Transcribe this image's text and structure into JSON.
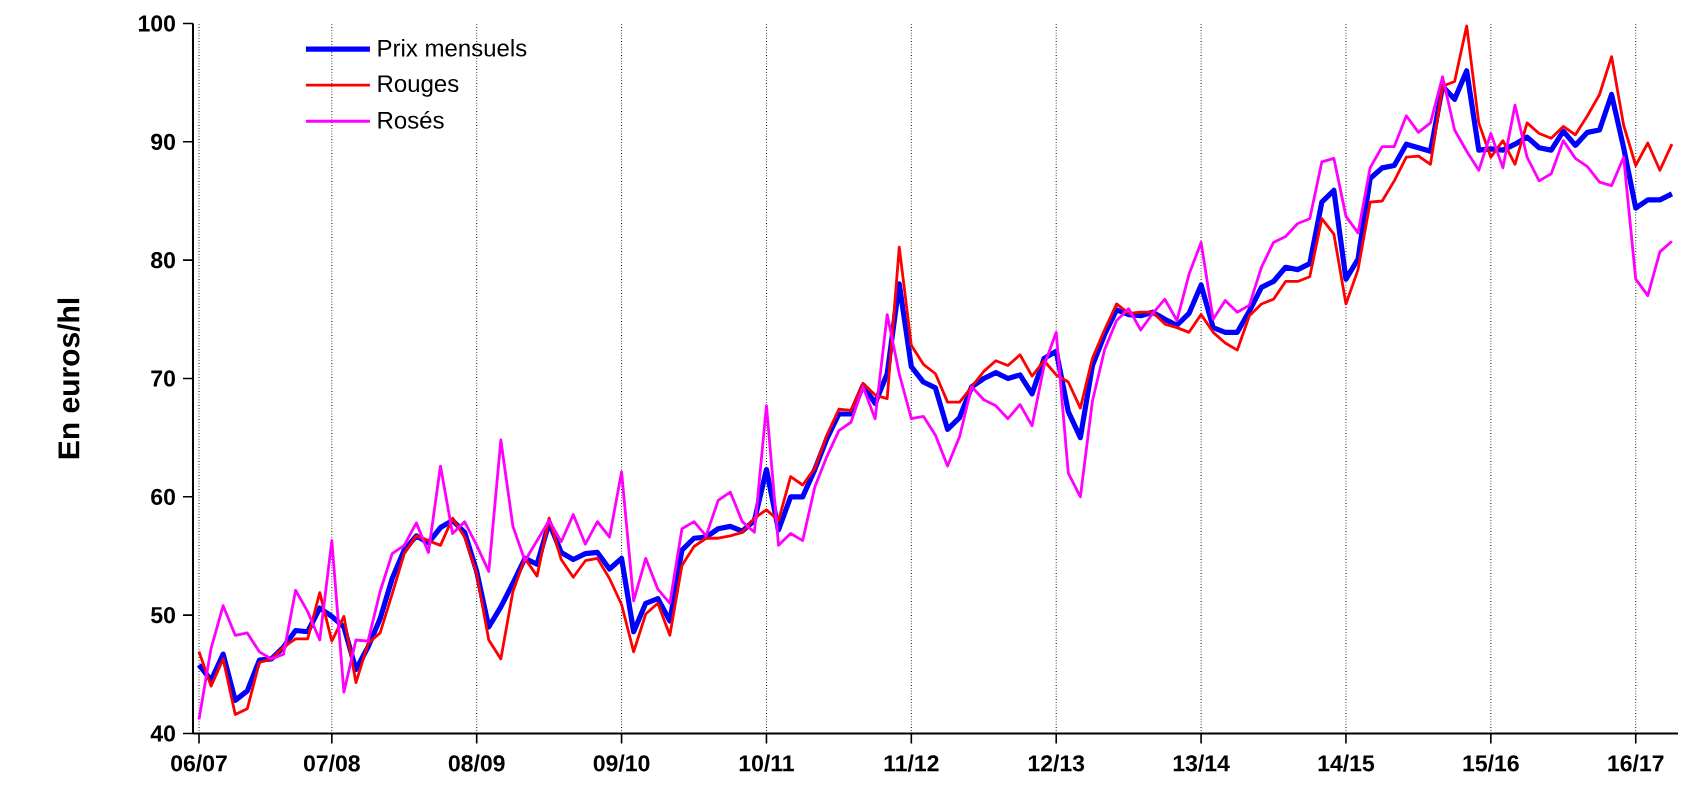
{
  "chart_data": {
    "type": "line",
    "ylabel": "En euros/hl",
    "grid": "x",
    "legend": "top left",
    "line_style": "solid",
    "marker": "none",
    "ylim": [
      40,
      100
    ],
    "yticks": [
      40,
      50,
      60,
      70,
      80,
      90,
      100
    ],
    "categories": [
      "06/07",
      null,
      null,
      null,
      null,
      null,
      null,
      null,
      null,
      null,
      null,
      "07/08",
      null,
      null,
      null,
      null,
      null,
      null,
      null,
      null,
      null,
      null,
      null,
      "08/09",
      null,
      null,
      null,
      null,
      null,
      null,
      null,
      null,
      null,
      null,
      null,
      "09/10",
      null,
      null,
      null,
      null,
      null,
      null,
      null,
      null,
      null,
      null,
      null,
      "10/11",
      null,
      null,
      null,
      null,
      null,
      null,
      null,
      null,
      null,
      null,
      null,
      "11/12",
      null,
      null,
      null,
      null,
      null,
      null,
      null,
      null,
      null,
      null,
      null,
      "12/13",
      null,
      null,
      null,
      null,
      null,
      null,
      null,
      null,
      null,
      null,
      null,
      "13/14",
      null,
      null,
      null,
      null,
      null,
      null,
      null,
      null,
      null,
      null,
      null,
      "14/15",
      null,
      null,
      null,
      null,
      null,
      null,
      null,
      null,
      null,
      null,
      null,
      "15/16",
      null,
      null,
      null,
      null,
      null,
      null,
      null,
      null,
      null,
      null,
      null,
      "16/17",
      null,
      null,
      null
    ],
    "series": [
      {
        "name": "Prix mensuels",
        "color": "#0000ff",
        "values": [
          45.8,
          44.5,
          46.7,
          42.8,
          43.6,
          46.2,
          46.3,
          47.3,
          48.7,
          48.6,
          50.6,
          49.9,
          49.0,
          45.4,
          47.3,
          49.7,
          53.1,
          55.5,
          56.7,
          56.1,
          57.4,
          58.0,
          57.0,
          53.7,
          49.0,
          50.7,
          52.7,
          54.8,
          54.3,
          57.8,
          55.3,
          54.7,
          55.2,
          55.3,
          53.9,
          54.8,
          48.6,
          51.0,
          51.4,
          49.5,
          55.5,
          56.5,
          56.6,
          57.3,
          57.5,
          57.1,
          58.0,
          62.3,
          57.2,
          60.0,
          60.0,
          62.3,
          64.9,
          67.0,
          67.0,
          69.4,
          67.9,
          70.4,
          78.0,
          71.0,
          69.7,
          69.2,
          65.7,
          66.7,
          69.3,
          70.0,
          70.5,
          70.0,
          70.3,
          68.7,
          71.7,
          72.3,
          67.2,
          65.0,
          71.1,
          73.7,
          75.8,
          75.4,
          75.3,
          75.6,
          75.0,
          74.5,
          75.5,
          77.9,
          74.3,
          73.9,
          73.9,
          75.7,
          77.7,
          78.2,
          79.4,
          79.2,
          79.7,
          84.9,
          85.9,
          78.4,
          80.1,
          86.9,
          87.8,
          88.0,
          89.8,
          89.5,
          89.2,
          94.7,
          93.6,
          96.0,
          89.3,
          89.4,
          89.3,
          89.8,
          90.4,
          89.5,
          89.3,
          90.9,
          89.7,
          90.8,
          91.0,
          94.0,
          89.5,
          84.4,
          85.1,
          85.1,
          85.6
        ]
      },
      {
        "name": "Rouges",
        "color": "#ff0000",
        "values": [
          46.9,
          44.0,
          46.3,
          41.6,
          42.1,
          46.0,
          46.3,
          47.3,
          48.0,
          48.0,
          51.9,
          47.8,
          49.9,
          44.3,
          47.6,
          48.5,
          51.8,
          55.2,
          56.7,
          56.3,
          55.9,
          58.2,
          56.6,
          53.5,
          47.9,
          46.3,
          52.0,
          54.8,
          53.3,
          58.2,
          54.7,
          53.2,
          54.6,
          54.8,
          53.1,
          50.9,
          46.9,
          50.1,
          51.0,
          48.3,
          54.2,
          55.8,
          56.5,
          56.5,
          56.7,
          57.0,
          58.2,
          58.9,
          58.0,
          61.7,
          61.0,
          62.4,
          65.2,
          67.4,
          67.3,
          69.6,
          68.6,
          68.3,
          81.1,
          72.8,
          71.2,
          70.4,
          68.0,
          68.0,
          69.3,
          70.6,
          71.5,
          71.1,
          72.0,
          70.2,
          71.5,
          70.3,
          69.7,
          67.5,
          71.7,
          74.1,
          76.3,
          75.5,
          75.6,
          75.6,
          74.6,
          74.3,
          73.9,
          75.4,
          73.9,
          73.0,
          72.4,
          75.3,
          76.3,
          76.7,
          78.2,
          78.2,
          78.6,
          83.5,
          82.2,
          76.3,
          79.2,
          84.9,
          85.0,
          86.7,
          88.7,
          88.8,
          88.1,
          94.7,
          95.1,
          99.8,
          91.6,
          88.7,
          90.1,
          88.1,
          91.6,
          90.7,
          90.3,
          91.3,
          90.6,
          92.2,
          94.0,
          97.2,
          91.4,
          88.0,
          89.9,
          87.6,
          89.8
        ]
      },
      {
        "name": "Rosés",
        "color": "#ff00ff",
        "values": [
          41.2,
          47.2,
          50.8,
          48.3,
          48.5,
          46.9,
          46.3,
          46.7,
          52.1,
          50.3,
          47.9,
          56.3,
          43.5,
          47.9,
          47.8,
          52.0,
          55.2,
          55.9,
          57.8,
          55.3,
          62.6,
          56.9,
          57.9,
          55.9,
          53.7,
          64.8,
          57.5,
          54.6,
          56.3,
          58.0,
          56.2,
          58.5,
          56.0,
          57.9,
          56.6,
          62.1,
          51.2,
          54.8,
          52.2,
          51.0,
          57.3,
          57.9,
          56.7,
          59.7,
          60.4,
          57.9,
          57.0,
          67.7,
          55.9,
          56.9,
          56.3,
          60.8,
          63.4,
          65.6,
          66.3,
          69.3,
          66.6,
          75.4,
          70.4,
          66.6,
          66.8,
          65.2,
          62.6,
          65.1,
          69.3,
          68.2,
          67.7,
          66.6,
          67.8,
          66.0,
          71.1,
          73.9,
          62.0,
          60.0,
          68.1,
          72.4,
          74.9,
          75.9,
          74.1,
          75.5,
          76.7,
          74.9,
          78.8,
          81.5,
          75.0,
          76.6,
          75.6,
          76.2,
          79.4,
          81.5,
          82.0,
          83.1,
          83.5,
          88.3,
          88.6,
          83.7,
          82.3,
          87.8,
          89.6,
          89.6,
          92.2,
          90.8,
          91.6,
          95.5,
          91.0,
          89.2,
          87.6,
          90.7,
          87.8,
          93.1,
          88.7,
          86.7,
          87.3,
          90.1,
          88.6,
          87.9,
          86.6,
          86.3,
          88.7,
          78.4,
          77.0,
          80.7,
          81.6
        ]
      }
    ]
  }
}
